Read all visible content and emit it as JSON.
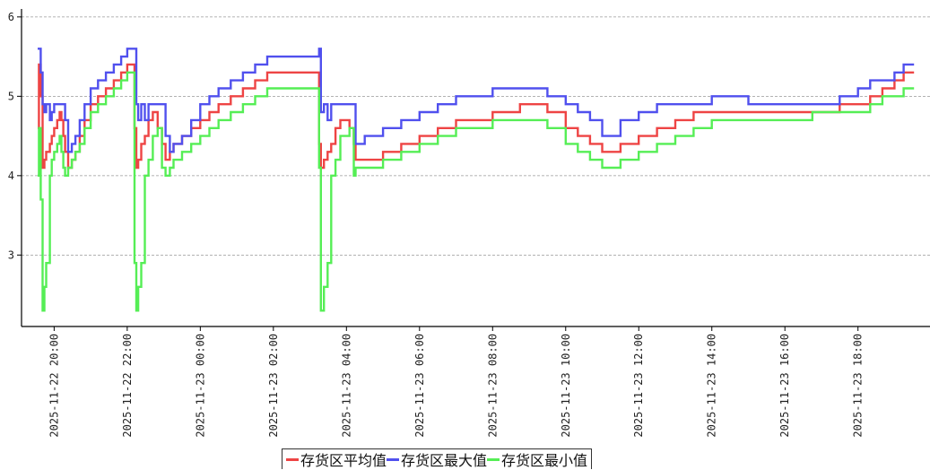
{
  "chart_data": {
    "type": "line",
    "title": "",
    "xlabel": "",
    "ylabel": "",
    "ylim": [
      2.1,
      6.1
    ],
    "yticks": [
      3,
      4,
      5,
      6
    ],
    "ytick_labels": [
      "3",
      "4",
      "5",
      "6"
    ],
    "xlim": [
      "2025-11-22 19:30",
      "2025-11-23 19:45"
    ],
    "xticks": [
      "2025-11-22 20:00",
      "2025-11-22 22:00",
      "2025-11-23 00:00",
      "2025-11-23 02:00",
      "2025-11-23 04:00",
      "2025-11-23 06:00",
      "2025-11-23 08:00",
      "2025-11-23 10:00",
      "2025-11-23 12:00",
      "2025-11-23 14:00",
      "2025-11-23 16:00",
      "2025-11-23 18:00"
    ],
    "xtick_labels": [
      "2025-11-22 20:00",
      "2025-11-22 22:00",
      "2025-11-23 00:00",
      "2025-11-23 02:00",
      "2025-11-23 04:00",
      "2025-11-23 06:00",
      "2025-11-23 08:00",
      "2025-11-23 10:00",
      "2025-11-23 12:00",
      "2025-11-23 14:00",
      "2025-11-23 16:00",
      "2025-11-23 18:00"
    ],
    "grid": "horizontal dashed",
    "legend_position": "bottom-center",
    "series": [
      {
        "name": "存货区平均值",
        "color": "#ee4444",
        "step": true,
        "x": [
          "2025-11-22 19:33",
          "2025-11-22 19:35",
          "2025-11-22 19:38",
          "2025-11-22 19:41",
          "2025-11-22 19:44",
          "2025-11-22 19:47",
          "2025-11-22 19:53",
          "2025-11-22 19:56",
          "2025-11-22 20:00",
          "2025-11-22 20:05",
          "2025-11-22 20:09",
          "2025-11-22 20:12",
          "2025-11-22 20:15",
          "2025-11-22 20:18",
          "2025-11-22 20:23",
          "2025-11-22 20:29",
          "2025-11-22 20:35",
          "2025-11-22 20:42",
          "2025-11-22 20:50",
          "2025-11-22 21:00",
          "2025-11-22 21:12",
          "2025-11-22 21:25",
          "2025-11-22 21:38",
          "2025-11-22 21:50",
          "2025-11-22 22:00",
          "2025-11-22 22:12",
          "2025-11-22 22:15",
          "2025-11-22 22:18",
          "2025-11-22 22:23",
          "2025-11-22 22:29",
          "2025-11-22 22:35",
          "2025-11-22 22:42",
          "2025-11-22 22:50",
          "2025-11-22 22:57",
          "2025-11-22 23:03",
          "2025-11-22 23:10",
          "2025-11-22 23:16",
          "2025-11-22 23:30",
          "2025-11-22 23:45",
          "2025-11-23 00:00",
          "2025-11-23 00:15",
          "2025-11-23 00:30",
          "2025-11-23 00:50",
          "2025-11-23 01:10",
          "2025-11-23 01:30",
          "2025-11-23 01:50",
          "2025-11-23 02:10",
          "2025-11-23 02:30",
          "2025-11-23 02:50",
          "2025-11-23 03:10",
          "2025-11-23 03:15",
          "2025-11-23 03:18",
          "2025-11-23 03:23",
          "2025-11-23 03:29",
          "2025-11-23 03:35",
          "2025-11-23 03:42",
          "2025-11-23 03:50",
          "2025-11-23 04:05",
          "2025-11-23 04:12",
          "2025-11-23 04:15",
          "2025-11-23 04:30",
          "2025-11-23 05:00",
          "2025-11-23 05:30",
          "2025-11-23 06:00",
          "2025-11-23 06:30",
          "2025-11-23 07:00",
          "2025-11-23 08:00",
          "2025-11-23 08:45",
          "2025-11-23 09:30",
          "2025-11-23 10:00",
          "2025-11-23 10:20",
          "2025-11-23 10:40",
          "2025-11-23 11:00",
          "2025-11-23 11:30",
          "2025-11-23 12:00",
          "2025-11-23 12:30",
          "2025-11-23 13:00",
          "2025-11-23 13:30",
          "2025-11-23 14:00",
          "2025-11-23 14:30",
          "2025-11-23 15:00",
          "2025-11-23 16:00",
          "2025-11-23 16:45",
          "2025-11-23 17:30",
          "2025-11-23 18:00",
          "2025-11-23 18:20",
          "2025-11-23 18:40",
          "2025-11-23 19:00",
          "2025-11-23 19:15",
          "2025-11-23 19:32"
        ],
        "values": [
          4.6,
          5.4,
          5.0,
          4.1,
          4.2,
          4.3,
          4.4,
          4.5,
          4.6,
          4.7,
          4.8,
          4.7,
          4.5,
          4.3,
          4.1,
          4.2,
          4.3,
          4.5,
          4.7,
          4.9,
          5.0,
          5.1,
          5.2,
          5.3,
          5.4,
          4.6,
          4.1,
          4.2,
          4.4,
          4.5,
          4.7,
          4.8,
          4.6,
          4.4,
          4.2,
          4.3,
          4.4,
          4.5,
          4.6,
          4.7,
          4.8,
          4.9,
          5.0,
          5.1,
          5.2,
          5.3,
          5.3,
          5.3,
          5.3,
          5.3,
          4.4,
          4.1,
          4.2,
          4.3,
          4.4,
          4.6,
          4.7,
          4.6,
          4.4,
          4.2,
          4.2,
          4.3,
          4.4,
          4.5,
          4.6,
          4.7,
          4.8,
          4.9,
          4.8,
          4.6,
          4.5,
          4.4,
          4.3,
          4.4,
          4.5,
          4.6,
          4.7,
          4.8,
          4.8,
          4.8,
          4.8,
          4.8,
          4.8,
          4.9,
          4.9,
          5.0,
          5.1,
          5.2,
          5.3,
          5.3
        ]
      },
      {
        "name": "存货区最大值",
        "color": "#5050ee",
        "step": true,
        "x": [
          "2025-11-22 19:33",
          "2025-11-22 19:35",
          "2025-11-22 19:38",
          "2025-11-22 19:41",
          "2025-11-22 19:44",
          "2025-11-22 19:47",
          "2025-11-22 19:53",
          "2025-11-22 19:56",
          "2025-11-22 20:00",
          "2025-11-22 20:05",
          "2025-11-22 20:09",
          "2025-11-22 20:12",
          "2025-11-22 20:15",
          "2025-11-22 20:18",
          "2025-11-22 20:23",
          "2025-11-22 20:29",
          "2025-11-22 20:35",
          "2025-11-22 20:42",
          "2025-11-22 20:50",
          "2025-11-22 21:00",
          "2025-11-22 21:12",
          "2025-11-22 21:25",
          "2025-11-22 21:38",
          "2025-11-22 21:50",
          "2025-11-22 22:00",
          "2025-11-22 22:12",
          "2025-11-22 22:15",
          "2025-11-22 22:18",
          "2025-11-22 22:23",
          "2025-11-22 22:29",
          "2025-11-22 22:35",
          "2025-11-22 22:42",
          "2025-11-22 22:50",
          "2025-11-22 22:57",
          "2025-11-22 23:03",
          "2025-11-22 23:10",
          "2025-11-22 23:16",
          "2025-11-22 23:30",
          "2025-11-22 23:45",
          "2025-11-23 00:00",
          "2025-11-23 00:15",
          "2025-11-23 00:30",
          "2025-11-23 00:50",
          "2025-11-23 01:10",
          "2025-11-23 01:30",
          "2025-11-23 01:50",
          "2025-11-23 02:10",
          "2025-11-23 02:30",
          "2025-11-23 02:50",
          "2025-11-23 03:10",
          "2025-11-23 03:15",
          "2025-11-23 03:18",
          "2025-11-23 03:23",
          "2025-11-23 03:29",
          "2025-11-23 03:35",
          "2025-11-23 03:42",
          "2025-11-23 03:50",
          "2025-11-23 04:05",
          "2025-11-23 04:12",
          "2025-11-23 04:15",
          "2025-11-23 04:30",
          "2025-11-23 05:00",
          "2025-11-23 05:30",
          "2025-11-23 06:00",
          "2025-11-23 06:30",
          "2025-11-23 07:00",
          "2025-11-23 08:00",
          "2025-11-23 08:45",
          "2025-11-23 09:30",
          "2025-11-23 10:00",
          "2025-11-23 10:20",
          "2025-11-23 10:40",
          "2025-11-23 11:00",
          "2025-11-23 11:30",
          "2025-11-23 12:00",
          "2025-11-23 12:30",
          "2025-11-23 13:00",
          "2025-11-23 13:30",
          "2025-11-23 14:00",
          "2025-11-23 14:30",
          "2025-11-23 15:00",
          "2025-11-23 16:00",
          "2025-11-23 16:45",
          "2025-11-23 17:30",
          "2025-11-23 18:00",
          "2025-11-23 18:20",
          "2025-11-23 18:40",
          "2025-11-23 19:00",
          "2025-11-23 19:15",
          "2025-11-23 19:32"
        ],
        "values": [
          5.6,
          5.6,
          5.3,
          4.9,
          4.8,
          4.9,
          4.7,
          4.8,
          4.9,
          4.9,
          4.9,
          4.9,
          4.9,
          4.7,
          4.3,
          4.4,
          4.5,
          4.7,
          4.9,
          5.1,
          5.2,
          5.3,
          5.4,
          5.5,
          5.6,
          5.6,
          4.9,
          4.7,
          4.9,
          4.7,
          4.9,
          4.9,
          4.9,
          4.9,
          4.5,
          4.3,
          4.4,
          4.5,
          4.7,
          4.9,
          5.0,
          5.1,
          5.2,
          5.3,
          5.4,
          5.5,
          5.5,
          5.5,
          5.5,
          5.5,
          5.6,
          4.8,
          4.9,
          4.7,
          4.9,
          4.9,
          4.9,
          4.9,
          4.9,
          4.4,
          4.5,
          4.6,
          4.7,
          4.8,
          4.9,
          5.0,
          5.1,
          5.1,
          5.0,
          4.9,
          4.8,
          4.7,
          4.5,
          4.7,
          4.8,
          4.9,
          4.9,
          4.9,
          5.0,
          5.0,
          4.9,
          4.9,
          4.9,
          5.0,
          5.1,
          5.2,
          5.2,
          5.3,
          5.4,
          5.4
        ]
      },
      {
        "name": "存货区最小值",
        "color": "#55ee55",
        "step": true,
        "x": [
          "2025-11-22 19:33",
          "2025-11-22 19:35",
          "2025-11-22 19:38",
          "2025-11-22 19:41",
          "2025-11-22 19:44",
          "2025-11-22 19:47",
          "2025-11-22 19:53",
          "2025-11-22 19:56",
          "2025-11-22 20:00",
          "2025-11-22 20:05",
          "2025-11-22 20:09",
          "2025-11-22 20:12",
          "2025-11-22 20:15",
          "2025-11-22 20:18",
          "2025-11-22 20:23",
          "2025-11-22 20:29",
          "2025-11-22 20:35",
          "2025-11-22 20:42",
          "2025-11-22 20:50",
          "2025-11-22 21:00",
          "2025-11-22 21:12",
          "2025-11-22 21:25",
          "2025-11-22 21:38",
          "2025-11-22 21:50",
          "2025-11-22 22:00",
          "2025-11-22 22:12",
          "2025-11-22 22:15",
          "2025-11-22 22:18",
          "2025-11-22 22:23",
          "2025-11-22 22:29",
          "2025-11-22 22:35",
          "2025-11-22 22:42",
          "2025-11-22 22:50",
          "2025-11-22 22:57",
          "2025-11-22 23:03",
          "2025-11-22 23:10",
          "2025-11-22 23:16",
          "2025-11-22 23:30",
          "2025-11-22 23:45",
          "2025-11-23 00:00",
          "2025-11-23 00:15",
          "2025-11-23 00:30",
          "2025-11-23 00:50",
          "2025-11-23 01:10",
          "2025-11-23 01:30",
          "2025-11-23 01:50",
          "2025-11-23 02:10",
          "2025-11-23 02:30",
          "2025-11-23 02:50",
          "2025-11-23 03:10",
          "2025-11-23 03:15",
          "2025-11-23 03:18",
          "2025-11-23 03:23",
          "2025-11-23 03:29",
          "2025-11-23 03:35",
          "2025-11-23 03:42",
          "2025-11-23 03:50",
          "2025-11-23 04:05",
          "2025-11-23 04:12",
          "2025-11-23 04:15",
          "2025-11-23 04:30",
          "2025-11-23 05:00",
          "2025-11-23 05:30",
          "2025-11-23 06:00",
          "2025-11-23 06:30",
          "2025-11-23 07:00",
          "2025-11-23 08:00",
          "2025-11-23 08:45",
          "2025-11-23 09:30",
          "2025-11-23 10:00",
          "2025-11-23 10:20",
          "2025-11-23 10:40",
          "2025-11-23 11:00",
          "2025-11-23 11:30",
          "2025-11-23 12:00",
          "2025-11-23 12:30",
          "2025-11-23 13:00",
          "2025-11-23 13:30",
          "2025-11-23 14:00",
          "2025-11-23 14:30",
          "2025-11-23 15:00",
          "2025-11-23 16:00",
          "2025-11-23 16:45",
          "2025-11-23 17:30",
          "2025-11-23 18:00",
          "2025-11-23 18:20",
          "2025-11-23 18:40",
          "2025-11-23 19:00",
          "2025-11-23 19:15",
          "2025-11-23 19:32"
        ],
        "values": [
          4.0,
          4.6,
          3.7,
          2.3,
          2.6,
          2.9,
          4.0,
          4.2,
          4.3,
          4.4,
          4.5,
          4.3,
          4.1,
          4.0,
          4.1,
          4.2,
          4.3,
          4.4,
          4.6,
          4.8,
          4.9,
          5.0,
          5.1,
          5.2,
          5.3,
          2.9,
          2.3,
          2.6,
          2.9,
          4.0,
          4.2,
          4.5,
          4.6,
          4.1,
          4.0,
          4.1,
          4.2,
          4.3,
          4.4,
          4.5,
          4.6,
          4.7,
          4.8,
          4.9,
          5.0,
          5.1,
          5.1,
          5.1,
          5.1,
          5.1,
          4.1,
          2.3,
          2.6,
          2.9,
          4.0,
          4.2,
          4.5,
          4.6,
          4.0,
          4.1,
          4.1,
          4.2,
          4.3,
          4.4,
          4.5,
          4.6,
          4.7,
          4.7,
          4.6,
          4.4,
          4.3,
          4.2,
          4.1,
          4.2,
          4.3,
          4.4,
          4.5,
          4.6,
          4.7,
          4.7,
          4.7,
          4.7,
          4.8,
          4.8,
          4.8,
          4.9,
          5.0,
          5.0,
          5.1,
          5.1
        ]
      }
    ]
  }
}
